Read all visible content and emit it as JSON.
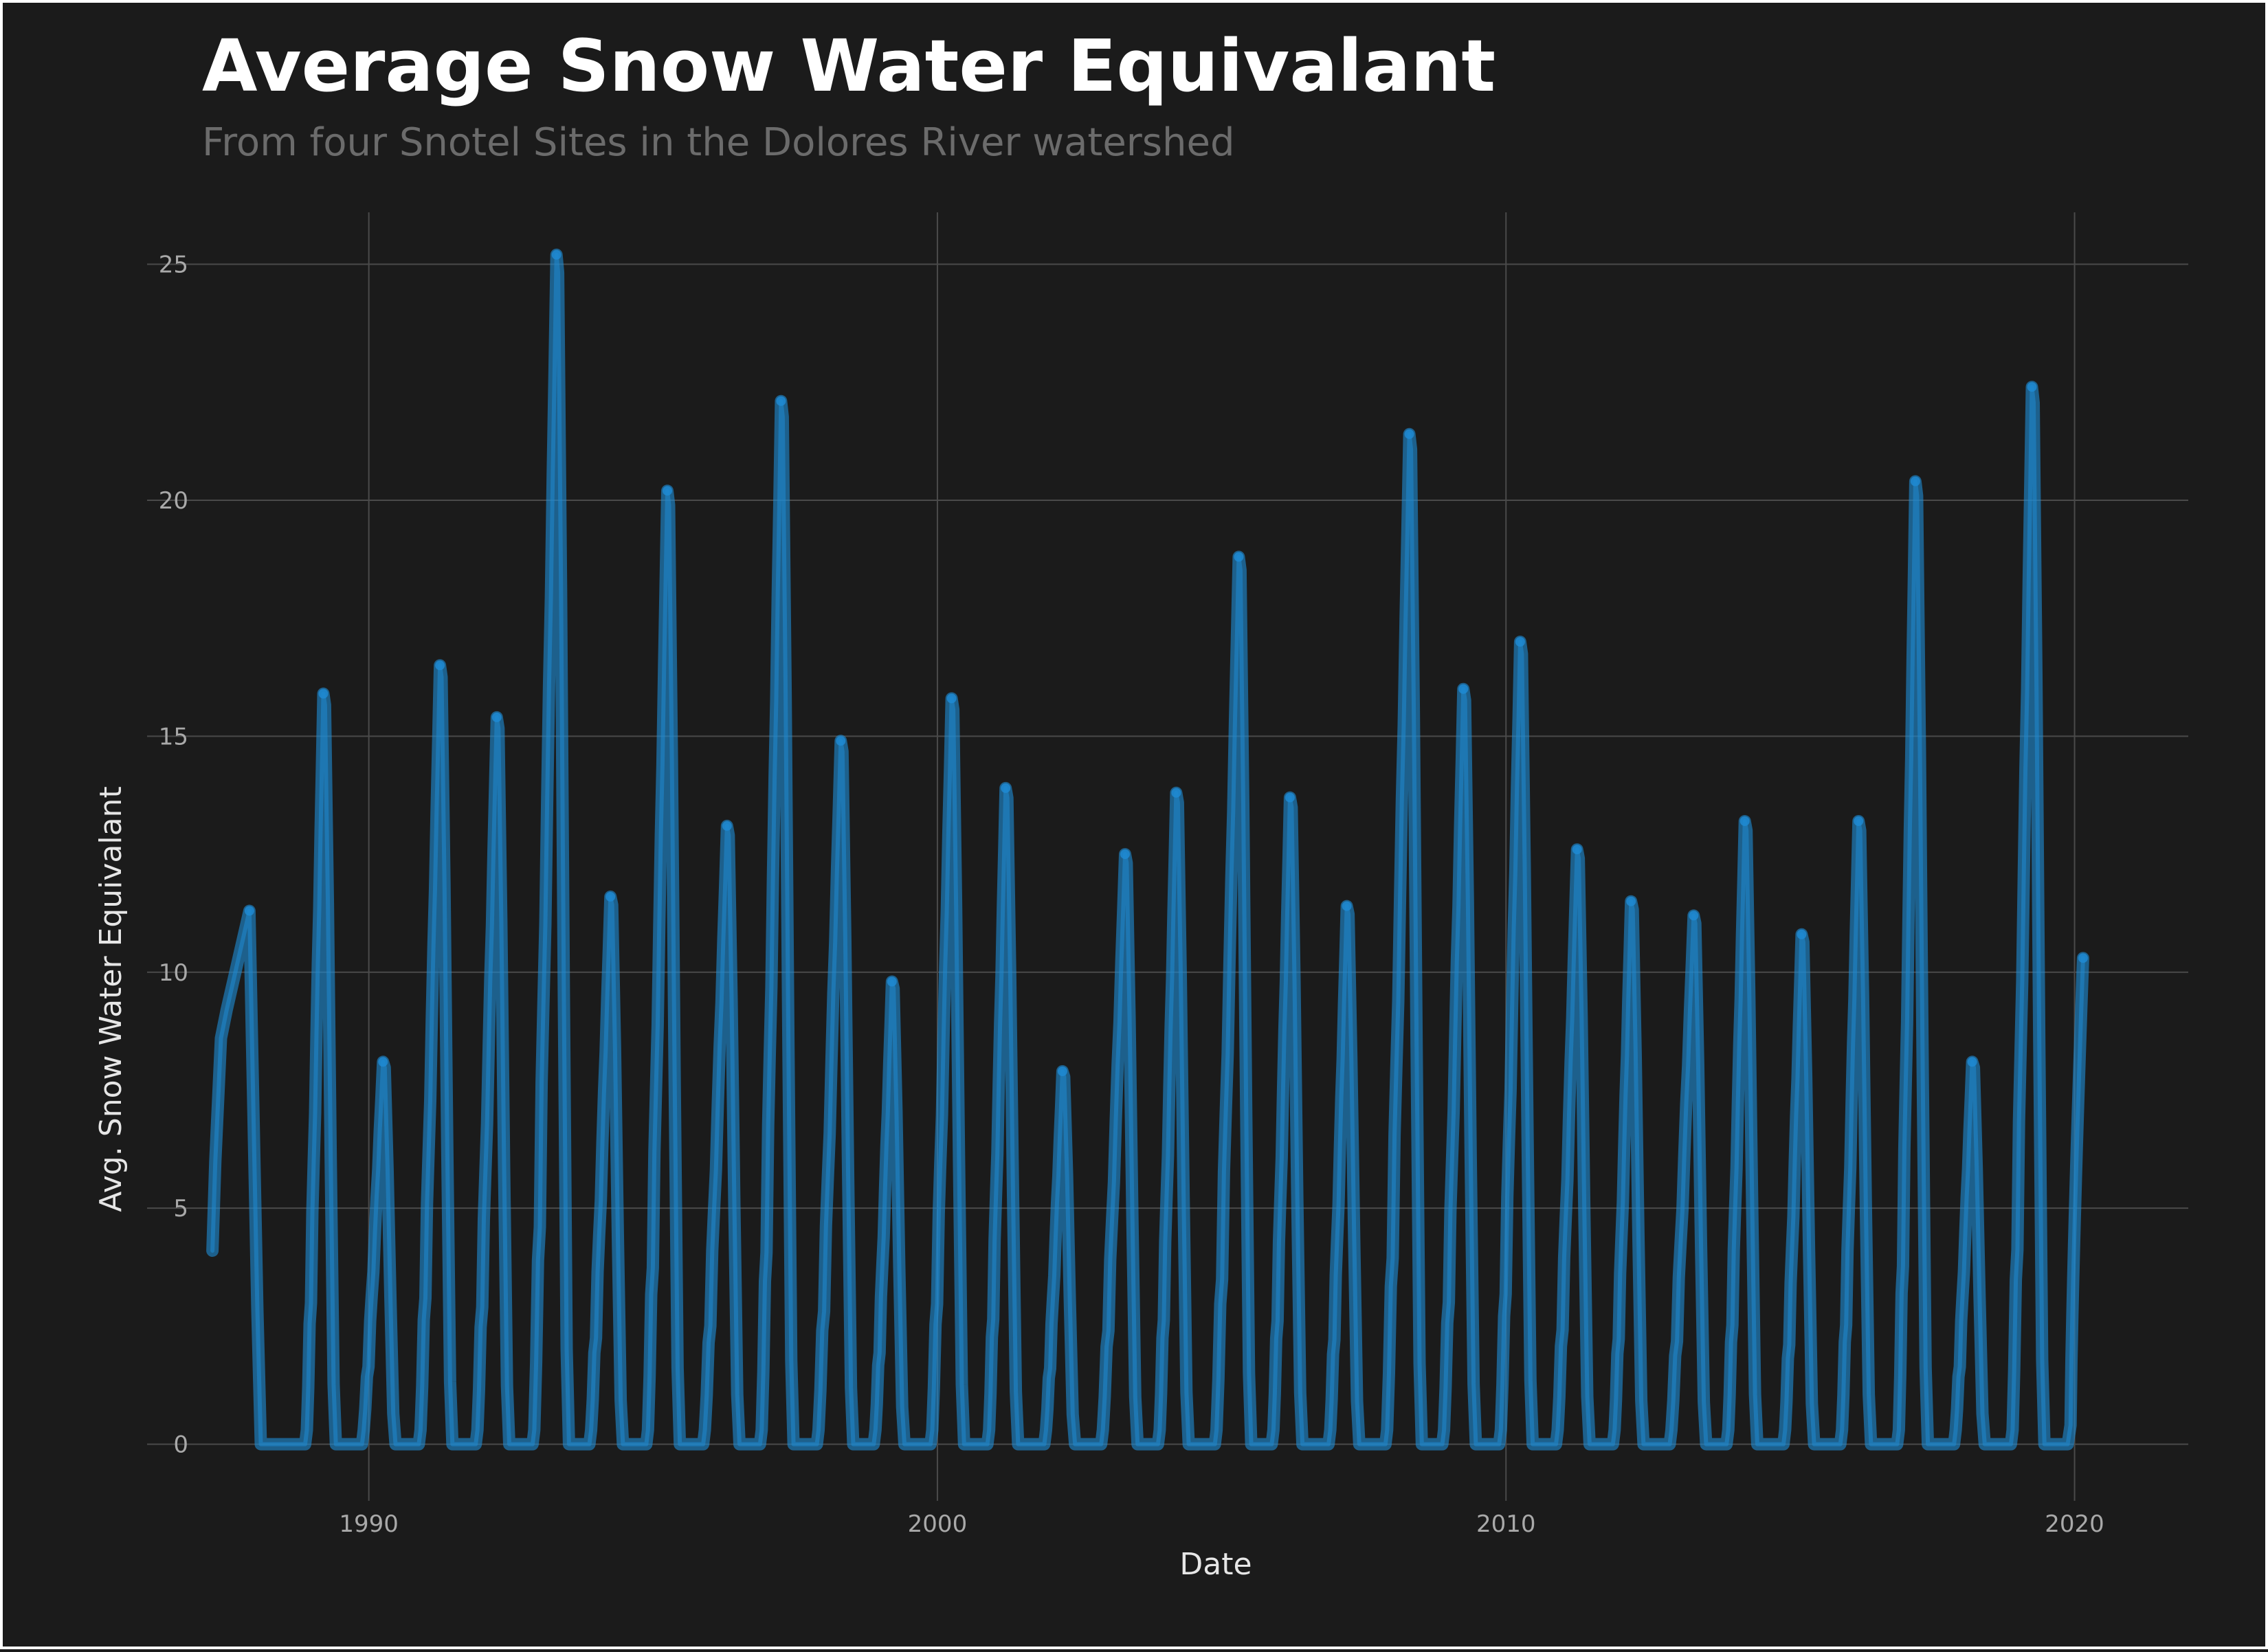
{
  "chart_data": {
    "type": "line",
    "title": "Average Snow Water Equivalant",
    "subtitle": "From four Snotel Sites in the Dolores River watershed",
    "xlabel": "Date",
    "ylabel": "Avg. Snow Water Equivalant",
    "xlim": [
      1986.1,
      2022.0
    ],
    "ylim": [
      -1.2,
      26.1
    ],
    "x_ticks": [
      1990,
      2000,
      2010,
      2020
    ],
    "y_ticks": [
      0,
      5,
      10,
      15,
      20,
      25
    ],
    "grid": true,
    "legend": "none",
    "line_color": "#1f8ad2",
    "series": [
      {
        "name": "Avg. Snow Water Equivalant",
        "peaks": [
          {
            "year": 1987.9,
            "value": 11.3
          },
          {
            "year": 1989.2,
            "value": 15.9
          },
          {
            "year": 1990.25,
            "value": 8.1
          },
          {
            "year": 1991.25,
            "value": 16.5
          },
          {
            "year": 1992.25,
            "value": 15.4
          },
          {
            "year": 1993.3,
            "value": 25.2
          },
          {
            "year": 1994.25,
            "value": 11.6
          },
          {
            "year": 1995.25,
            "value": 20.2
          },
          {
            "year": 1996.3,
            "value": 13.1
          },
          {
            "year": 1997.25,
            "value": 22.1
          },
          {
            "year": 1998.3,
            "value": 14.9
          },
          {
            "year": 1999.2,
            "value": 9.8
          },
          {
            "year": 2000.25,
            "value": 15.8
          },
          {
            "year": 2001.2,
            "value": 13.9
          },
          {
            "year": 2002.2,
            "value": 7.9
          },
          {
            "year": 2003.3,
            "value": 12.5
          },
          {
            "year": 2004.2,
            "value": 13.8
          },
          {
            "year": 2005.3,
            "value": 18.8
          },
          {
            "year": 2006.2,
            "value": 13.7
          },
          {
            "year": 2007.2,
            "value": 11.4
          },
          {
            "year": 2008.3,
            "value": 21.4
          },
          {
            "year": 2009.25,
            "value": 16.0
          },
          {
            "year": 2010.25,
            "value": 17.0
          },
          {
            "year": 2011.25,
            "value": 12.6
          },
          {
            "year": 2012.2,
            "value": 11.5
          },
          {
            "year": 2013.3,
            "value": 11.2
          },
          {
            "year": 2014.2,
            "value": 13.2
          },
          {
            "year": 2015.2,
            "value": 10.8
          },
          {
            "year": 2016.2,
            "value": 13.2
          },
          {
            "year": 2017.2,
            "value": 20.4
          },
          {
            "year": 2018.2,
            "value": 8.1
          },
          {
            "year": 2019.25,
            "value": 22.4
          },
          {
            "year": 2020.15,
            "value": 10.3
          }
        ]
      }
    ]
  }
}
